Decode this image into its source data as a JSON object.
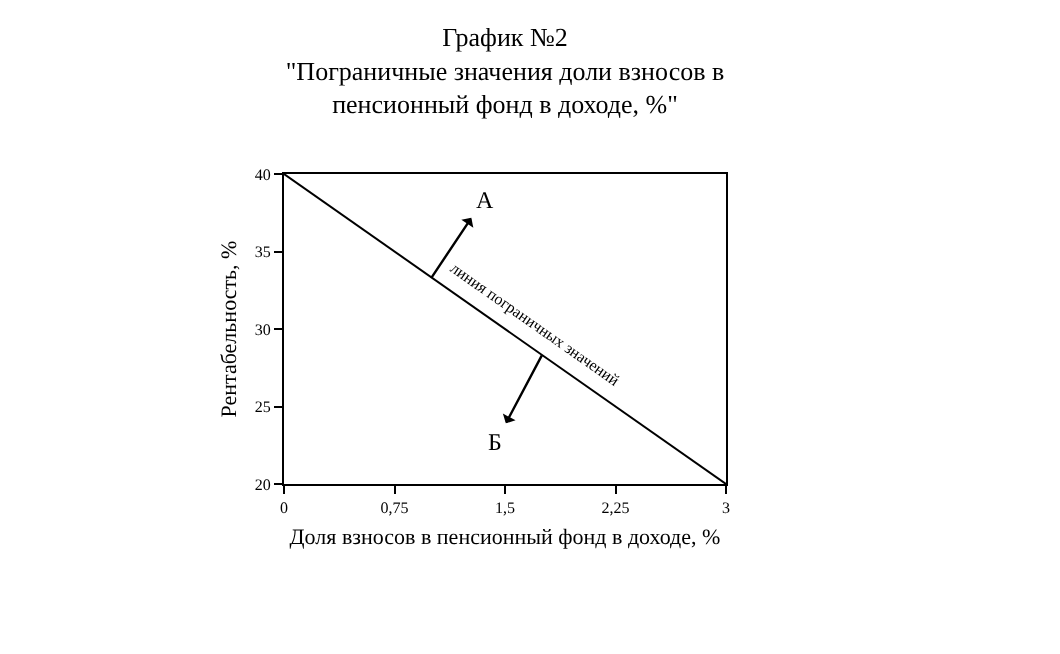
{
  "chart_data": {
    "type": "line",
    "title": "График №2\n\"Пограничные значения доли взносов в\nпенсионный фонд в доходе, %\"",
    "xlabel": "Доля взносов в пенсионный фонд в доходе, %",
    "ylabel": "Рентабельность, %",
    "x": [
      0,
      3
    ],
    "series": [
      {
        "color": "#000000",
        "values": [
          40,
          20
        ]
      }
    ],
    "xlim": [
      0,
      3
    ],
    "xticks": [
      0,
      {
        "value": 0.75,
        "label": "0,75"
      },
      {
        "value": 1.5,
        "label": "1,5"
      },
      {
        "value": 2.25,
        "label": "2,25"
      },
      3
    ],
    "ylim": [
      20,
      40
    ],
    "yticks": [
      20,
      25,
      30,
      35,
      40
    ],
    "grid": false,
    "marker": "none",
    "line_style": "solid",
    "annotations": [
      {
        "text": "А",
        "x": 1,
        "y": 33.3
      },
      "линия пограничных значений",
      {
        "text": "Б",
        "x": 1.75,
        "y": 28.3
      }
    ]
  }
}
